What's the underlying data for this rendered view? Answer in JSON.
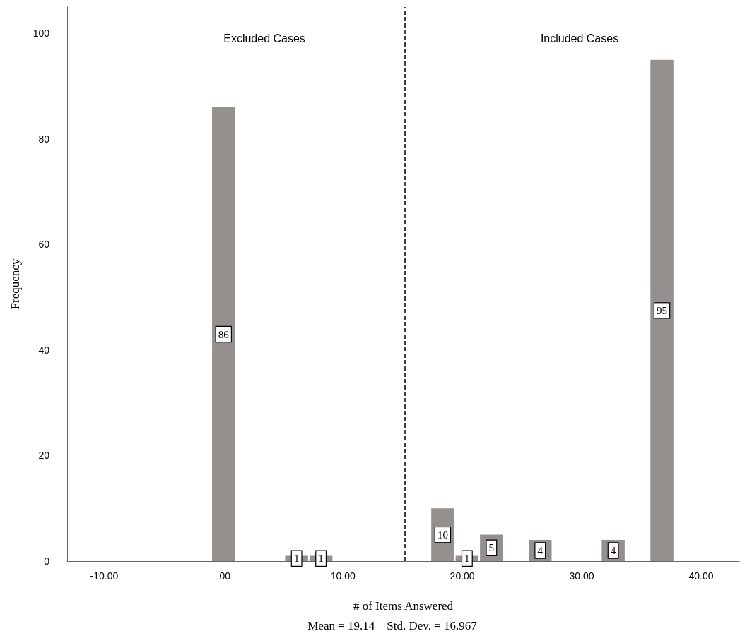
{
  "chart_data": {
    "type": "histogram",
    "xlabel": "# of Items Answered",
    "ylabel": "Frequency",
    "bins": [
      -1.02,
      1.02,
      3.06,
      5.1,
      7.14,
      9.18,
      11.22,
      13.26,
      15.3,
      17.34,
      19.38,
      21.42,
      23.46,
      25.5,
      27.54,
      29.58,
      31.62,
      33.66,
      35.7,
      37.74
    ],
    "values": [
      86,
      0,
      0,
      1,
      1,
      0,
      0,
      0,
      0,
      10,
      1,
      5,
      0,
      4,
      0,
      0,
      4,
      0,
      95
    ],
    "value_labels": [
      "86",
      null,
      null,
      "1",
      "1",
      null,
      null,
      null,
      null,
      "10",
      "1",
      "5",
      null,
      "4",
      null,
      null,
      "4",
      null,
      "95"
    ],
    "color": "#958f8e",
    "xlim": [
      -13.1,
      43.2
    ],
    "ylim": [
      0,
      105
    ],
    "xticks": [
      {
        "value": -10,
        "label": "-10.00"
      },
      {
        "value": 0,
        "label": ".00"
      },
      {
        "value": 10,
        "label": "10.00"
      },
      {
        "value": 20,
        "label": "20.00"
      },
      {
        "value": 30,
        "label": "30.00"
      },
      {
        "value": 40,
        "label": "40.00"
      }
    ],
    "yticks": [
      0,
      20,
      40,
      60,
      80,
      100
    ],
    "grid": false,
    "ref_lines": [
      {
        "axis": "x",
        "value": 15.2,
        "label": null,
        "color": "#000000",
        "line_style": "dashed"
      }
    ],
    "annotations": [
      "Excluded Cases",
      "Included Cases",
      "Mean = 19.14    Std. Dev. = 16.967"
    ]
  }
}
